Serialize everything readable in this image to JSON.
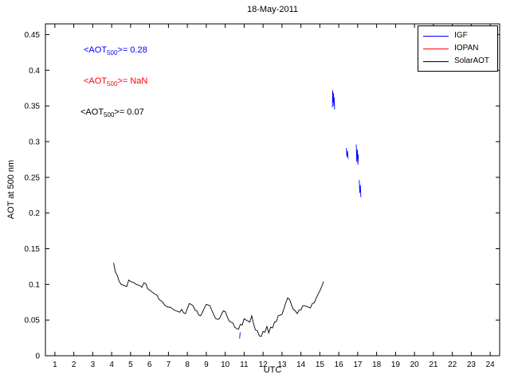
{
  "chart_data": {
    "type": "line",
    "title": "18-May-2011",
    "xlabel": "UTC",
    "ylabel": "AOT at 500 nm",
    "xlim": [
      0.5,
      24.5
    ],
    "ylim": [
      0,
      0.465
    ],
    "grid": false,
    "legend_position": "top-right",
    "xticks": [
      1,
      2,
      3,
      4,
      5,
      6,
      7,
      8,
      9,
      10,
      11,
      12,
      13,
      14,
      15,
      16,
      17,
      18,
      19,
      20,
      21,
      22,
      23,
      24
    ],
    "xtick_labels": [
      "1",
      "2",
      "3",
      "4",
      "5",
      "6",
      "7",
      "8",
      "9",
      "10",
      "11",
      "12",
      "13",
      "14",
      "15",
      "16",
      "17",
      "18",
      "19",
      "20",
      "21",
      "22",
      "23",
      "24"
    ],
    "yticks": [
      0,
      0.05,
      0.1,
      0.15,
      0.2,
      0.25,
      0.3,
      0.35,
      0.4,
      0.45
    ],
    "ytick_labels": [
      "0",
      "0.05",
      "0.1",
      "0.15",
      "0.2",
      "0.25",
      "0.3",
      "0.35",
      "0.4",
      "0.45"
    ],
    "series": [
      {
        "name": "IGF",
        "color": "#0000ff",
        "segments": [
          [
            [
              15.66,
              0.348
            ],
            [
              15.68,
              0.372
            ],
            [
              15.7,
              0.355
            ],
            [
              15.72,
              0.368
            ],
            [
              15.74,
              0.35
            ],
            [
              15.76,
              0.362
            ],
            [
              15.78,
              0.345
            ]
          ],
          [
            [
              16.4,
              0.291
            ],
            [
              16.43,
              0.279
            ],
            [
              16.46,
              0.287
            ],
            [
              16.49,
              0.276
            ]
          ],
          [
            [
              16.92,
              0.296
            ],
            [
              16.95,
              0.272
            ],
            [
              16.98,
              0.289
            ],
            [
              17.01,
              0.268
            ],
            [
              17.04,
              0.282
            ]
          ],
          [
            [
              17.08,
              0.246
            ],
            [
              17.11,
              0.228
            ],
            [
              17.14,
              0.239
            ],
            [
              17.17,
              0.222
            ]
          ],
          [
            [
              10.76,
              0.024
            ],
            [
              10.79,
              0.033
            ]
          ]
        ]
      },
      {
        "name": "IOPAN",
        "color": "#ff0000",
        "segments": []
      },
      {
        "name": "SolarAOT",
        "color": "#000000",
        "x_start": 4.1,
        "x_step": 0.1,
        "y": [
          0.13,
          0.117,
          0.112,
          0.104,
          0.1,
          0.099,
          0.098,
          0.097,
          0.106,
          0.104,
          0.103,
          0.102,
          0.1,
          0.099,
          0.098,
          0.096,
          0.102,
          0.101,
          0.094,
          0.092,
          0.09,
          0.088,
          0.086,
          0.085,
          0.079,
          0.077,
          0.075,
          0.071,
          0.069,
          0.068,
          0.068,
          0.066,
          0.064,
          0.063,
          0.062,
          0.061,
          0.065,
          0.06,
          0.059,
          0.066,
          0.073,
          0.072,
          0.07,
          0.064,
          0.063,
          0.057,
          0.056,
          0.061,
          0.067,
          0.072,
          0.071,
          0.07,
          0.063,
          0.057,
          0.052,
          0.051,
          0.052,
          0.058,
          0.063,
          0.062,
          0.055,
          0.049,
          0.047,
          0.046,
          0.04,
          0.038,
          0.037,
          0.044,
          0.043,
          0.052,
          0.05,
          0.049,
          0.047,
          0.056,
          0.044,
          0.036,
          0.035,
          0.028,
          0.027,
          0.034,
          0.033,
          0.041,
          0.032,
          0.04,
          0.039,
          0.047,
          0.048,
          0.056,
          0.057,
          0.058,
          0.066,
          0.074,
          0.081,
          0.079,
          0.071,
          0.065,
          0.063,
          0.059,
          0.064,
          0.064,
          0.07,
          0.07,
          0.069,
          0.068,
          0.067,
          0.073,
          0.074,
          0.08,
          0.086,
          0.091,
          0.097,
          0.104
        ]
      }
    ]
  },
  "legend": {
    "items": [
      {
        "label": "IGF",
        "color": "#0000ff"
      },
      {
        "label": "IOPAN",
        "color": "#ff0000"
      },
      {
        "label": "SolarAOT",
        "color": "#000000"
      }
    ]
  },
  "annotations": [
    {
      "pre": "<AOT",
      "sub": "500",
      "post": ">= 0.28",
      "color": "#0000ff"
    },
    {
      "pre": "<AOT",
      "sub": "500",
      "post": ">=  NaN",
      "color": "#ff0000"
    },
    {
      "pre": "<AOT",
      "sub": "500",
      "post": ">= 0.07",
      "color": "#000000"
    }
  ]
}
